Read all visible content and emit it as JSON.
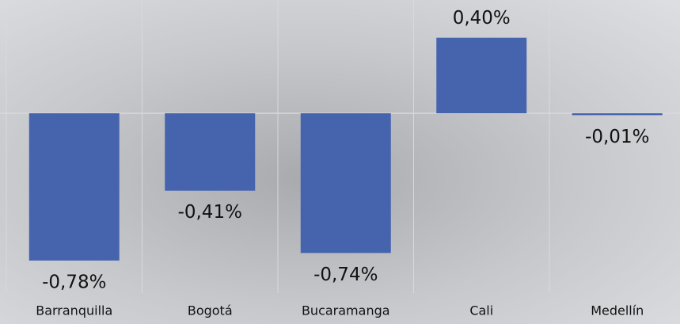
{
  "chart_data": {
    "type": "bar",
    "categories": [
      "Barranquilla",
      "Bogotá",
      "Bucaramanga",
      "Cali",
      "Medellín"
    ],
    "values": [
      -0.78,
      -0.41,
      -0.74,
      0.4,
      -0.01
    ],
    "value_labels": [
      "-0,78%",
      "-0,41%",
      "-0,74%",
      "0,40%",
      "-0,01%"
    ],
    "color": "#4664ae",
    "ylim": [
      -0.9,
      0.6
    ]
  }
}
